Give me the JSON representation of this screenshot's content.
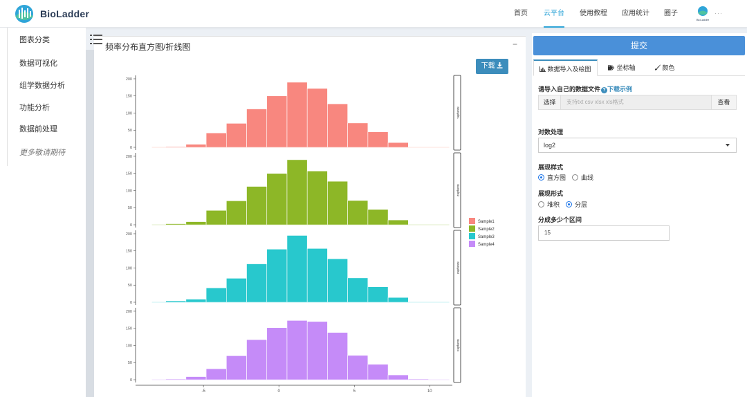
{
  "brand": {
    "name": "BioLadder"
  },
  "nav": {
    "items": [
      {
        "label": "首页",
        "active": false
      },
      {
        "label": "云平台",
        "active": true
      },
      {
        "label": "使用教程",
        "active": false
      },
      {
        "label": "应用统计",
        "active": false
      },
      {
        "label": "圈子",
        "active": false
      }
    ],
    "user_logo_text": "BioLadder",
    "user_name": "···"
  },
  "sidebar": {
    "items": [
      {
        "label": "图表分类"
      },
      {
        "label": "数据可视化"
      },
      {
        "label": "组学数据分析"
      },
      {
        "label": "功能分析"
      },
      {
        "label": "数据前处理"
      },
      {
        "label": "更多敬请期待"
      }
    ]
  },
  "panel": {
    "title": "频率分布直方图/折线图",
    "collapse": "−",
    "download_label": "下载"
  },
  "right": {
    "submit_label": "提交",
    "tabs": [
      {
        "label": "数据导入及绘图",
        "active": true
      },
      {
        "label": "坐标轴",
        "active": false
      },
      {
        "label": "颜色",
        "active": false
      }
    ],
    "import_label": "请导入自己的数据文件",
    "help_icon": "?",
    "example_link": "下载示例",
    "choose_label": "选择",
    "file_placeholder": "支持txt csv xlsx xls格式",
    "view_label": "查看",
    "log_label": "对数处理",
    "log_value": "log2",
    "style_label": "展现样式",
    "style_options": [
      "直方图",
      "曲线"
    ],
    "style_selected": "直方图",
    "form_label": "展现形式",
    "form_options": [
      "堆积",
      "分层"
    ],
    "form_selected": "分层",
    "bins_label": "分成多少个区间",
    "bins_value": "15"
  },
  "colors": {
    "accent": "#3c8dbc",
    "submit": "#4a90d9",
    "nav_active": "#2fa5d8"
  },
  "chart_data": {
    "type": "bar",
    "subtype": "faceted-histogram",
    "bin_edges": [
      -7.5,
      -6.16,
      -4.82,
      -3.48,
      -2.14,
      -0.8,
      0.54,
      1.88,
      3.22,
      4.56,
      5.9,
      7.24,
      8.58,
      9.92
    ],
    "x_ticks": [
      -5,
      0,
      5,
      10
    ],
    "xlim": [
      -9.5,
      11.5
    ],
    "y_ticks": [
      0,
      50,
      100,
      150,
      200
    ],
    "ylim": [
      0,
      210
    ],
    "series": [
      {
        "name": "Sample1",
        "color": "#f8877f",
        "strip": "Sample1",
        "values": [
          2,
          9,
          42,
          70,
          112,
          150,
          190,
          172,
          127,
          71,
          45,
          14,
          1
        ]
      },
      {
        "name": "Sample2",
        "color": "#8db727",
        "strip": "Sample2",
        "values": [
          3,
          9,
          42,
          70,
          112,
          150,
          190,
          157,
          127,
          71,
          45,
          14,
          1
        ]
      },
      {
        "name": "Sample3",
        "color": "#28c8cd",
        "strip": "Sample3",
        "values": [
          4,
          9,
          42,
          70,
          112,
          155,
          195,
          157,
          127,
          71,
          45,
          14,
          1
        ]
      },
      {
        "name": "Sample4",
        "color": "#c58bf8",
        "strip": "Sample4",
        "values": [
          2,
          9,
          32,
          70,
          117,
          152,
          173,
          170,
          138,
          71,
          45,
          14,
          2
        ]
      }
    ],
    "legend_position": "right",
    "grid": false
  }
}
